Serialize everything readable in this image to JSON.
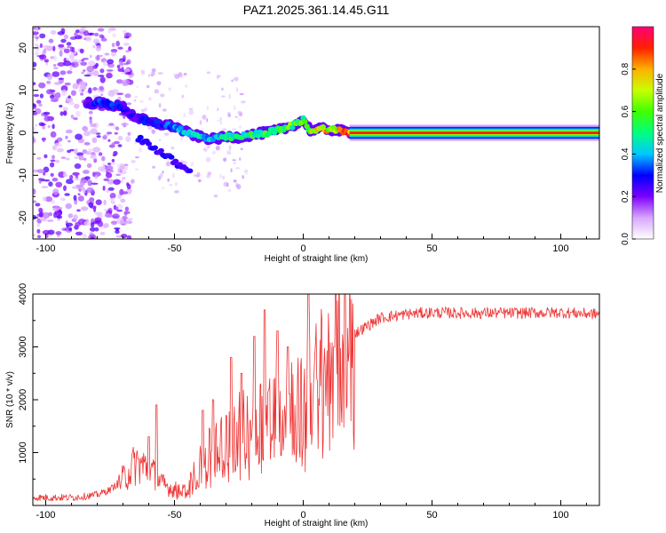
{
  "figure_title": "PAZ1.2025.361.14.45.G11",
  "chart_data": [
    {
      "type": "heatmap",
      "title": "PAZ1.2025.361.14.45.G11",
      "xlabel": "Height of straight line (km)",
      "ylabel": "Frequency (Hz)",
      "xlim": [
        -105,
        115
      ],
      "ylim": [
        -25,
        25
      ],
      "x_ticks": [
        -100,
        -50,
        0,
        50,
        100
      ],
      "y_ticks": [
        -20,
        -10,
        0,
        10,
        20
      ],
      "colorbar": {
        "label": "Normalized spectral amplitude",
        "range": [
          0,
          1
        ],
        "ticks": [
          "0.0",
          "0.2",
          "0.4",
          "0.6",
          "0.8"
        ],
        "tick_values": [
          0.0,
          0.2,
          0.4,
          0.6,
          0.8
        ]
      },
      "ridge": [
        {
          "x": -82,
          "y": 7,
          "amp": 0.25
        },
        {
          "x": -78,
          "y": 7,
          "amp": 0.35
        },
        {
          "x": -74,
          "y": 6.5,
          "amp": 0.3
        },
        {
          "x": -70,
          "y": 6,
          "amp": 0.28
        },
        {
          "x": -66,
          "y": 4,
          "amp": 0.25
        },
        {
          "x": -60,
          "y": 2.5,
          "amp": 0.3
        },
        {
          "x": -55,
          "y": 2,
          "amp": 0.3
        },
        {
          "x": -50,
          "y": 1.5,
          "amp": 0.35
        },
        {
          "x": -45,
          "y": 0,
          "amp": 0.42
        },
        {
          "x": -40,
          "y": -1,
          "amp": 0.45
        },
        {
          "x": -35,
          "y": -1.5,
          "amp": 0.45
        },
        {
          "x": -30,
          "y": -1,
          "amp": 0.5
        },
        {
          "x": -25,
          "y": -1,
          "amp": 0.5
        },
        {
          "x": -20,
          "y": -0.5,
          "amp": 0.55
        },
        {
          "x": -15,
          "y": 0,
          "amp": 0.55
        },
        {
          "x": -10,
          "y": 0.5,
          "amp": 0.6
        },
        {
          "x": -5,
          "y": 1.5,
          "amp": 0.6
        },
        {
          "x": 0,
          "y": 3,
          "amp": 0.55
        },
        {
          "x": 3,
          "y": 0.5,
          "amp": 0.7
        },
        {
          "x": 8,
          "y": 1,
          "amp": 0.75
        },
        {
          "x": 14,
          "y": 0.5,
          "amp": 0.8
        },
        {
          "x": 20,
          "y": 0,
          "amp": 0.95
        },
        {
          "x": 115,
          "y": 0,
          "amp": 0.95
        }
      ]
    },
    {
      "type": "line",
      "title": "",
      "xlabel": "Height of straight line (km)",
      "ylabel": "SNR (10 * v/v)",
      "xlim": [
        -105,
        115
      ],
      "ylim": [
        0,
        4000
      ],
      "x_ticks": [
        -100,
        -50,
        0,
        50,
        100
      ],
      "y_ticks": [
        1000,
        2000,
        3000,
        4000
      ],
      "color": "#ee3333",
      "envelope": {
        "x": [
          -105,
          -90,
          -80,
          -75,
          -70,
          -65,
          -60,
          -55,
          -50,
          -45,
          -42,
          -38,
          -35,
          -30,
          -25,
          -20,
          -15,
          -10,
          -5,
          0,
          5,
          10,
          15,
          20,
          25,
          30,
          40,
          50,
          60,
          80,
          100,
          115
        ],
        "y": [
          150,
          150,
          200,
          300,
          500,
          800,
          700,
          400,
          300,
          280,
          600,
          900,
          1000,
          1200,
          1400,
          1600,
          1700,
          1900,
          2000,
          1800,
          2300,
          2700,
          3000,
          3250,
          3400,
          3550,
          3620,
          3650,
          3640,
          3640,
          3650,
          3620
        ]
      },
      "spikes": [
        {
          "x": -60,
          "y": 1300
        },
        {
          "x": -57,
          "y": 1900
        },
        {
          "x": -39,
          "y": 1800
        },
        {
          "x": -35,
          "y": 2000
        },
        {
          "x": -28,
          "y": 2800
        },
        {
          "x": -24,
          "y": 2500
        },
        {
          "x": -19,
          "y": 3200
        },
        {
          "x": -15,
          "y": 3700
        },
        {
          "x": -10,
          "y": 3300
        },
        {
          "x": -6,
          "y": 3000
        },
        {
          "x": 2,
          "y": 4000
        },
        {
          "x": 12,
          "y": 3000
        }
      ]
    }
  ]
}
